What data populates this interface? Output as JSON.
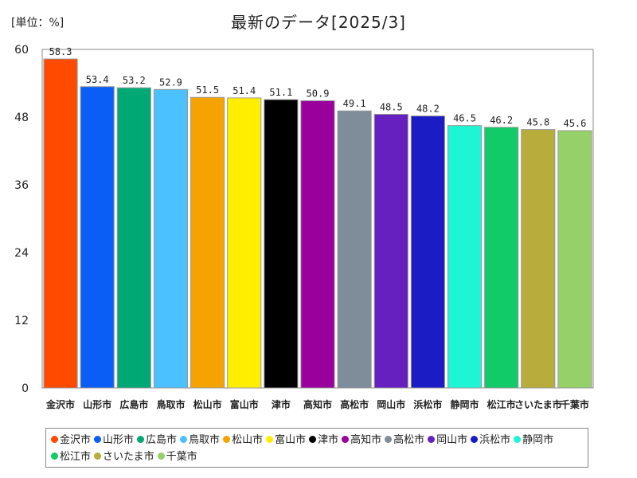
{
  "unit_label": "[単位：%]",
  "chart_data": {
    "type": "bar",
    "title": "最新のデータ[2025/3]",
    "categories": [
      "金沢市",
      "山形市",
      "広島市",
      "鳥取市",
      "松山市",
      "富山市",
      "津市",
      "高知市",
      "高松市",
      "岡山市",
      "浜松市",
      "静岡市",
      "松江市",
      "さいたま市",
      "千葉市"
    ],
    "values": [
      58.3,
      53.4,
      53.2,
      52.9,
      51.5,
      51.4,
      51.1,
      50.9,
      49.1,
      48.5,
      48.2,
      46.5,
      46.2,
      45.8,
      45.6
    ],
    "value_labels": [
      "58.3",
      "53.4",
      "53.2",
      "52.9",
      "51.5",
      "51.4",
      "51.1",
      "50.9",
      "49.1",
      "48.5",
      "48.2",
      "46.5",
      "46.2",
      "45.8",
      "45.6"
    ],
    "colors": [
      "#ff4a00",
      "#0a5ef5",
      "#00a874",
      "#4cc1ff",
      "#f5a300",
      "#ffee00",
      "#000000",
      "#99009c",
      "#7f8c99",
      "#6620c0",
      "#1c1cc5",
      "#1ef5d5",
      "#10cb68",
      "#b8ad3c",
      "#96d068"
    ],
    "ylim": [
      0,
      60
    ],
    "yticks": [
      "0",
      "12",
      "24",
      "36",
      "48",
      "60"
    ],
    "grid": false,
    "legend_position": "bottom"
  }
}
